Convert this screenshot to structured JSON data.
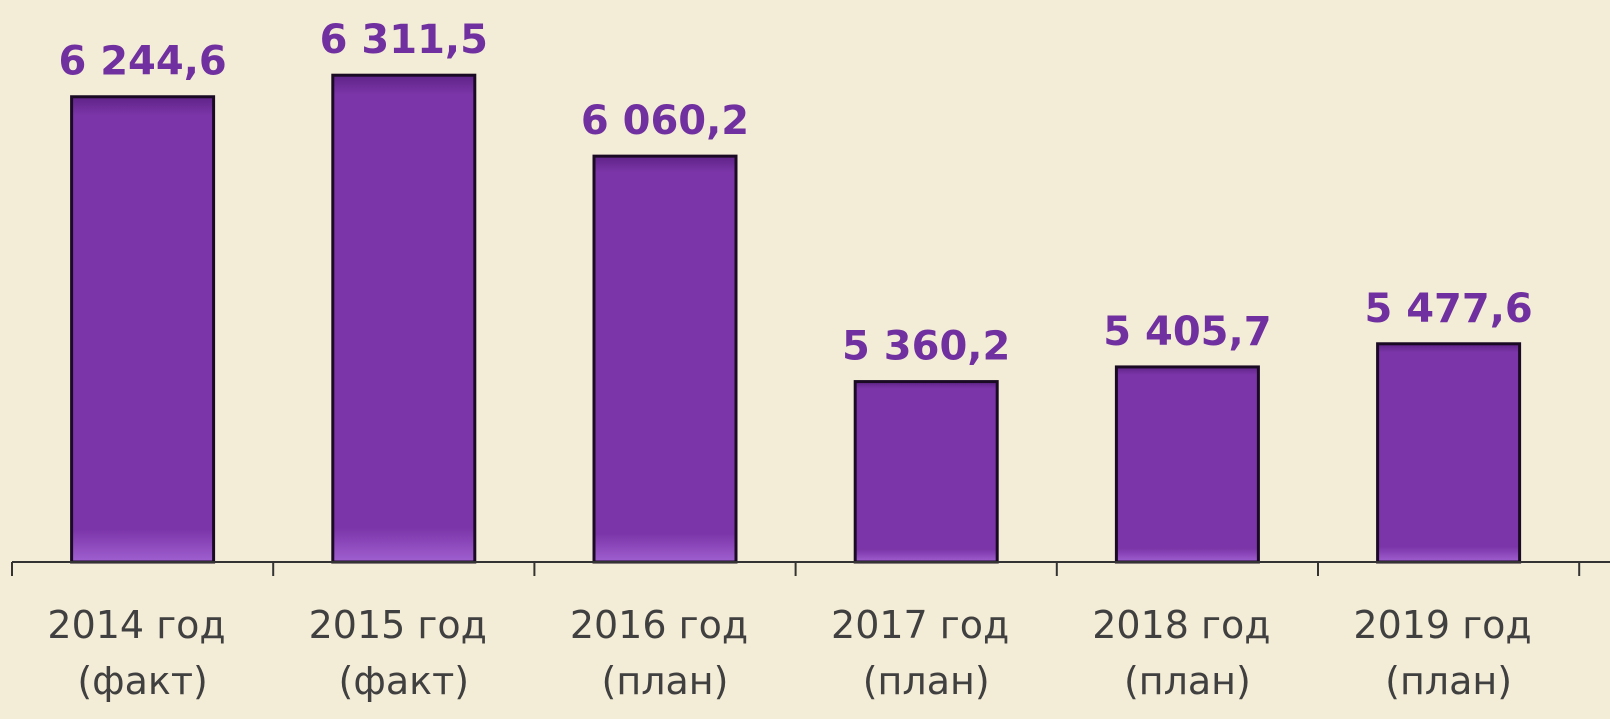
{
  "chart_data": {
    "type": "bar",
    "categories": [
      "2014 год (факт)",
      "2015 год (факт)",
      "2016 год (план)",
      "2017 год (план)",
      "2018 год (план)",
      "2019 год (план)"
    ],
    "values": [
      6244.6,
      6311.5,
      6060.2,
      5360.2,
      5405.7,
      5477.6
    ],
    "value_labels": [
      "6 244,6",
      "6 311,5",
      "6 060,2",
      "5 360,2",
      "5 405,7",
      "5 477,6"
    ],
    "color": "#7b35a8",
    "ylim": [
      4800,
      6545
    ]
  }
}
